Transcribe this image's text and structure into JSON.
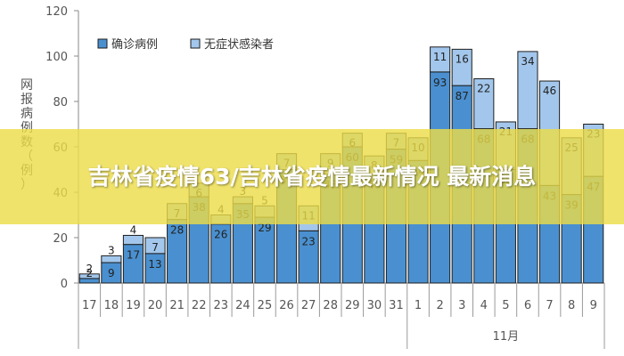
{
  "chart_data": {
    "type": "bar",
    "stacked": true,
    "categories": [
      "17",
      "18",
      "19",
      "20",
      "21",
      "22",
      "23",
      "24",
      "25",
      "26",
      "27",
      "28",
      "29",
      "30",
      "31",
      "1",
      "2",
      "3",
      "4",
      "5",
      "6",
      "7",
      "8",
      "9"
    ],
    "month_label": "11月",
    "ylabel": "网\n报\n病\n例\n数\n（\n例\n）",
    "ylim": [
      0,
      120
    ],
    "yticks": [
      0,
      20,
      40,
      60,
      80,
      100,
      120
    ],
    "legend_position": "top-left",
    "series": [
      {
        "name": "确诊病例",
        "color": "#4a90d0",
        "values": [
          2,
          9,
          17,
          13,
          28,
          38,
          26,
          35,
          29,
          50,
          23,
          48,
          60,
          48,
          59,
          54,
          93,
          87,
          68,
          50,
          68,
          43,
          39,
          47
        ]
      },
      {
        "name": "无症状感染者",
        "color": "#a3c7ec",
        "values": [
          2,
          3,
          4,
          7,
          7,
          6,
          4,
          3,
          5,
          7,
          11,
          9,
          6,
          8,
          7,
          10,
          11,
          16,
          22,
          21,
          34,
          46,
          25,
          23
        ]
      }
    ]
  },
  "overlay": {
    "headline": "吉林省疫情63/吉林省疫情最新情况 最新消息"
  }
}
